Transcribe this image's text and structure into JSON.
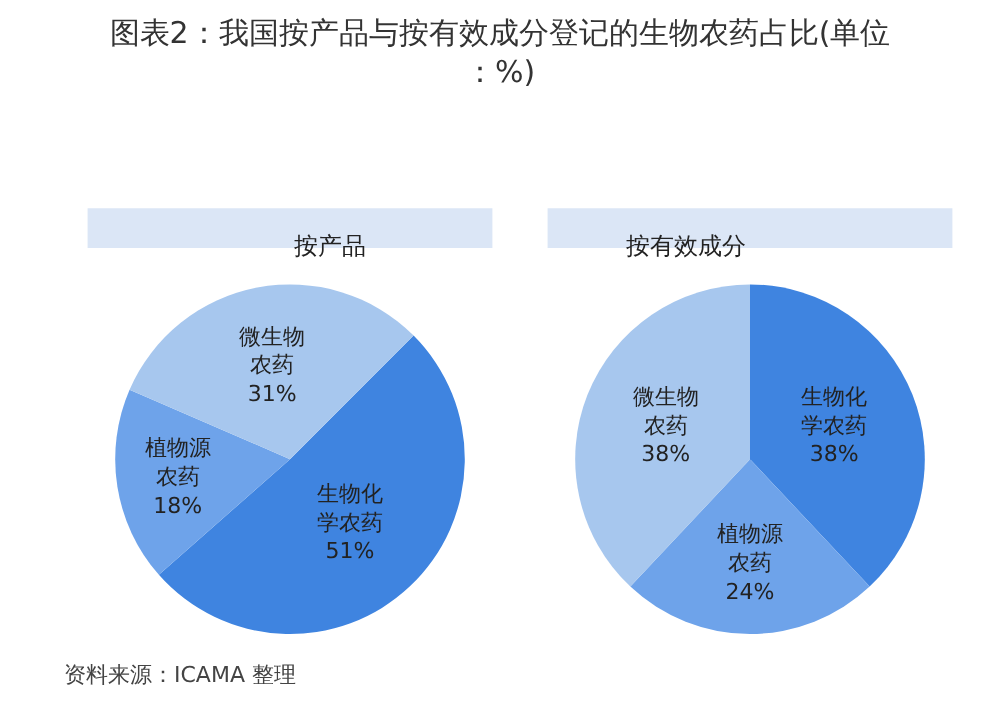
{
  "chart_data": [
    {
      "type": "pie",
      "title": "图表2：我国按产品与按有效成分登记的生物农药占比(单位：%)",
      "subtitle": "按产品",
      "categories": [
        "生物化学农药",
        "植物源农药",
        "微生物农药"
      ],
      "values": [
        51,
        18,
        31
      ],
      "value_labels": [
        "51%",
        "18%",
        "31%"
      ],
      "colors": [
        "#3f84e0",
        "#6ea3ea",
        "#a7c7ee"
      ],
      "legend": false,
      "annotations": [
        "资料来源：ICAMA 整理"
      ]
    },
    {
      "type": "pie",
      "subtitle": "按有效成分",
      "categories": [
        "生物化学农药",
        "植物源农药",
        "微生物农药"
      ],
      "values": [
        38,
        24,
        38
      ],
      "value_labels": [
        "38%",
        "24%",
        "38%"
      ],
      "colors": [
        "#3f84e0",
        "#6ea3ea",
        "#a7c7ee"
      ],
      "legend": false
    }
  ]
}
